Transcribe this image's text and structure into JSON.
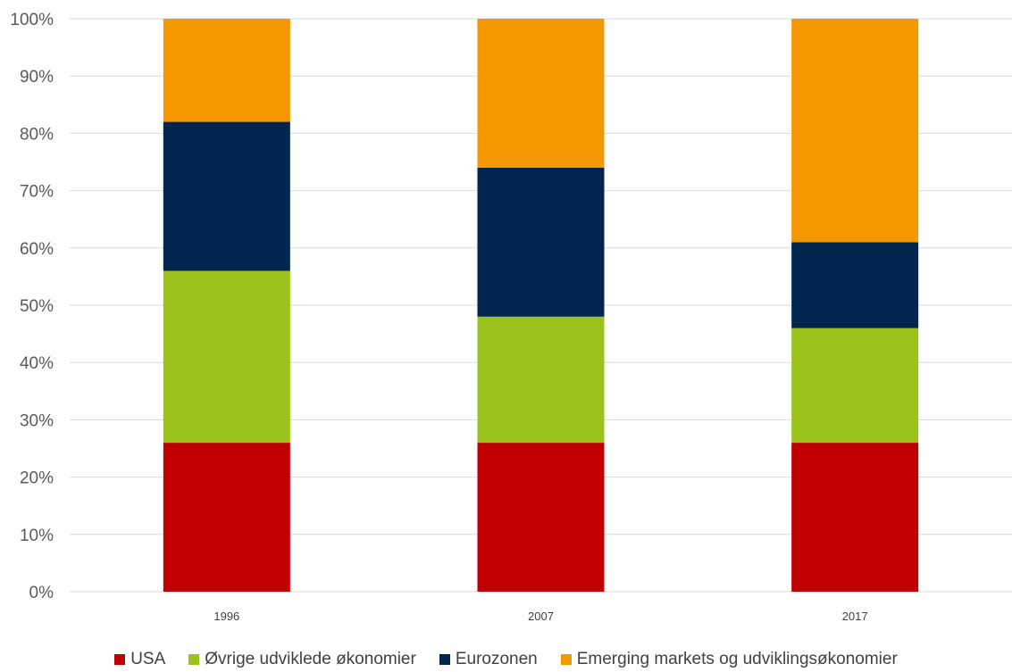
{
  "chart_data": {
    "type": "bar",
    "stacked": true,
    "categories": [
      "1996",
      "2007",
      "2017"
    ],
    "series": [
      {
        "name": "USA",
        "color": "#c00000",
        "values": [
          26,
          26,
          26
        ]
      },
      {
        "name": "Øvrige udviklede økonomier",
        "color": "#9bc31c",
        "values": [
          30,
          22,
          20
        ]
      },
      {
        "name": "Eurozonen",
        "color": "#00264d",
        "values": [
          26,
          26,
          15
        ]
      },
      {
        "name": "Emerging markets og udviklingsøkonomier",
        "color": "#f39800",
        "values": [
          18,
          26,
          39
        ]
      }
    ],
    "ylim": [
      0,
      100
    ],
    "y_ticks": [
      "0%",
      "10%",
      "20%",
      "30%",
      "40%",
      "50%",
      "60%",
      "70%",
      "80%",
      "90%",
      "100%"
    ],
    "grid": true,
    "legend_position": "bottom"
  }
}
